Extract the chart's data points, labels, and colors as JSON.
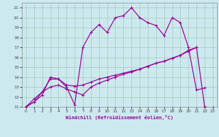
{
  "xlabel": "Windchill (Refroidissement éolien,°C)",
  "background_color": "#cde9f0",
  "grid_color": "#aaccbb",
  "line_color": "#990099",
  "xlim": [
    -0.5,
    23.5
  ],
  "ylim": [
    11,
    21.5
  ],
  "xticks": [
    0,
    1,
    2,
    3,
    4,
    5,
    6,
    7,
    8,
    9,
    10,
    11,
    12,
    13,
    14,
    15,
    16,
    17,
    18,
    19,
    20,
    21,
    22,
    23
  ],
  "yticks": [
    11,
    12,
    13,
    14,
    15,
    16,
    17,
    18,
    19,
    20,
    21
  ],
  "line1_x": [
    0,
    1,
    2,
    3,
    4,
    5,
    6,
    7,
    8,
    9,
    10,
    11,
    12,
    13,
    14,
    15,
    16,
    17,
    18,
    19,
    20,
    21,
    22
  ],
  "line1_y": [
    11.0,
    11.5,
    12.2,
    14.0,
    13.8,
    13.0,
    11.2,
    17.0,
    18.5,
    19.3,
    18.5,
    20.0,
    20.2,
    21.0,
    20.0,
    19.5,
    19.2,
    18.2,
    20.0,
    19.5,
    17.0,
    12.7,
    12.9
  ],
  "line2_x": [
    0,
    1,
    2,
    3,
    4,
    5,
    6,
    7,
    8,
    9,
    10,
    11,
    12,
    13,
    14,
    15,
    16,
    17,
    18,
    19,
    20,
    21
  ],
  "line2_y": [
    11.0,
    11.5,
    12.5,
    13.8,
    13.8,
    13.2,
    13.1,
    13.2,
    13.5,
    13.8,
    14.0,
    14.2,
    14.4,
    14.6,
    14.8,
    15.1,
    15.4,
    15.6,
    15.9,
    16.2,
    16.7,
    17.0
  ],
  "line3_x": [
    0,
    1,
    2,
    3,
    4,
    5,
    6,
    7,
    8,
    9,
    10,
    11,
    12,
    13,
    14,
    15,
    16,
    17,
    18,
    19,
    20,
    21,
    22,
    23
  ],
  "line3_y": [
    11.0,
    11.8,
    12.5,
    13.0,
    13.2,
    12.8,
    12.5,
    12.2,
    13.0,
    13.4,
    13.7,
    14.0,
    14.3,
    14.5,
    14.8,
    15.1,
    15.4,
    15.6,
    15.9,
    16.2,
    16.6,
    17.0,
    11.0,
    10.9
  ]
}
